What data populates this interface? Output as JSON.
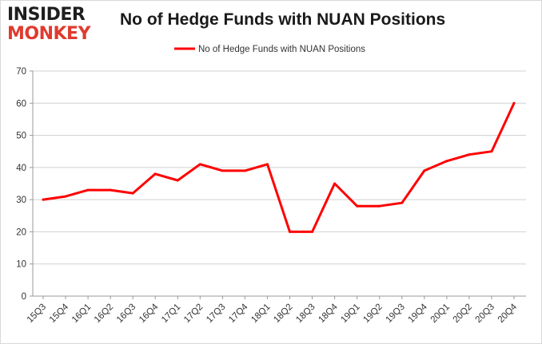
{
  "logo": {
    "line1": "INSIDER",
    "line2": "MONKEY"
  },
  "colors": {
    "series": "#ff0000",
    "grid": "#d0d0d0",
    "axis": "#999999",
    "logo_dark": "#1e1e1e",
    "logo_red": "#e03a2e"
  },
  "chart_data": {
    "type": "line",
    "title": "No of Hedge Funds with NUAN Positions",
    "xlabel": "",
    "ylabel": "",
    "ylim": [
      0,
      70
    ],
    "yticks": [
      0,
      10,
      20,
      30,
      40,
      50,
      60,
      70
    ],
    "grid": true,
    "legend_position": "top-center",
    "categories": [
      "15Q3",
      "15Q4",
      "16Q1",
      "16Q2",
      "16Q3",
      "16Q4",
      "17Q1",
      "17Q2",
      "17Q3",
      "17Q4",
      "18Q1",
      "18Q2",
      "18Q3",
      "18Q4",
      "19Q1",
      "19Q2",
      "19Q3",
      "19Q4",
      "20Q1",
      "20Q2",
      "20Q3",
      "20Q4"
    ],
    "series": [
      {
        "name": "No of Hedge Funds with NUAN Positions",
        "color": "#ff0000",
        "values": [
          30,
          31,
          33,
          33,
          32,
          38,
          36,
          41,
          39,
          39,
          41,
          20,
          20,
          35,
          28,
          28,
          29,
          39,
          42,
          44,
          45,
          60
        ]
      }
    ]
  }
}
